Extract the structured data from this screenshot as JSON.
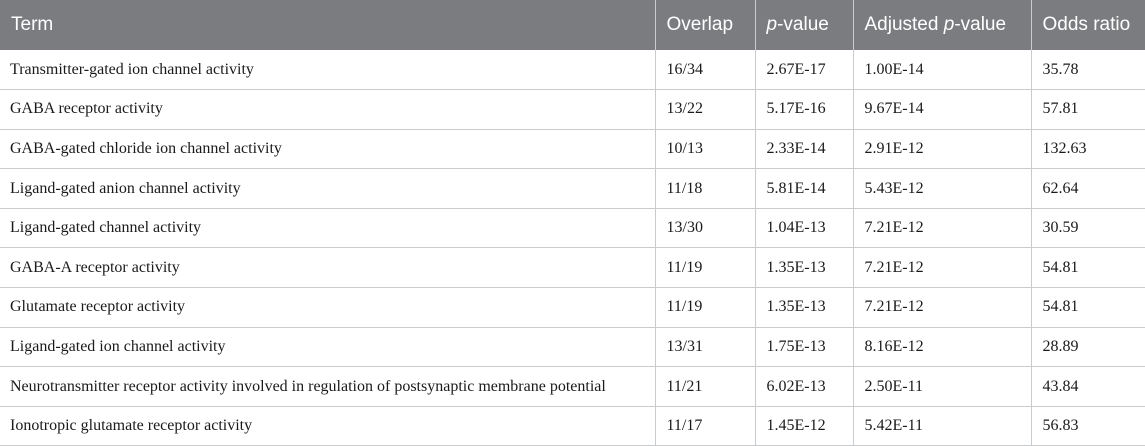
{
  "header": {
    "term": "Term",
    "overlap": "Overlap",
    "p_italic": "p",
    "p_suffix": "-value",
    "adj_prefix": "Adjusted ",
    "adj_italic": "p",
    "adj_suffix": "-value",
    "odds": "Odds ratio"
  },
  "rows": [
    {
      "term": "Transmitter-gated ion channel activity",
      "overlap": "16/34",
      "p": "2.67E-17",
      "adj": "1.00E-14",
      "odds": "35.78"
    },
    {
      "term": "GABA receptor activity",
      "overlap": "13/22",
      "p": "5.17E-16",
      "adj": "9.67E-14",
      "odds": "57.81"
    },
    {
      "term": "GABA-gated chloride ion channel activity",
      "overlap": "10/13",
      "p": "2.33E-14",
      "adj": "2.91E-12",
      "odds": "132.63"
    },
    {
      "term": "Ligand-gated anion channel activity",
      "overlap": "11/18",
      "p": "5.81E-14",
      "adj": "5.43E-12",
      "odds": "62.64"
    },
    {
      "term": "Ligand-gated channel activity",
      "overlap": "13/30",
      "p": "1.04E-13",
      "adj": "7.21E-12",
      "odds": "30.59"
    },
    {
      "term": "GABA-A receptor activity",
      "overlap": "11/19",
      "p": "1.35E-13",
      "adj": "7.21E-12",
      "odds": "54.81"
    },
    {
      "term": "Glutamate receptor activity",
      "overlap": "11/19",
      "p": "1.35E-13",
      "adj": "7.21E-12",
      "odds": "54.81"
    },
    {
      "term": "Ligand-gated ion channel activity",
      "overlap": "13/31",
      "p": "1.75E-13",
      "adj": "8.16E-12",
      "odds": "28.89"
    },
    {
      "term": "Neurotransmitter receptor activity involved in regulation of postsynaptic membrane potential",
      "overlap": "11/21",
      "p": "6.02E-13",
      "adj": "2.50E-11",
      "odds": "43.84"
    },
    {
      "term": "Ionotropic glutamate receptor activity",
      "overlap": "11/17",
      "p": "1.45E-12",
      "adj": "5.42E-11",
      "odds": "56.83"
    }
  ]
}
